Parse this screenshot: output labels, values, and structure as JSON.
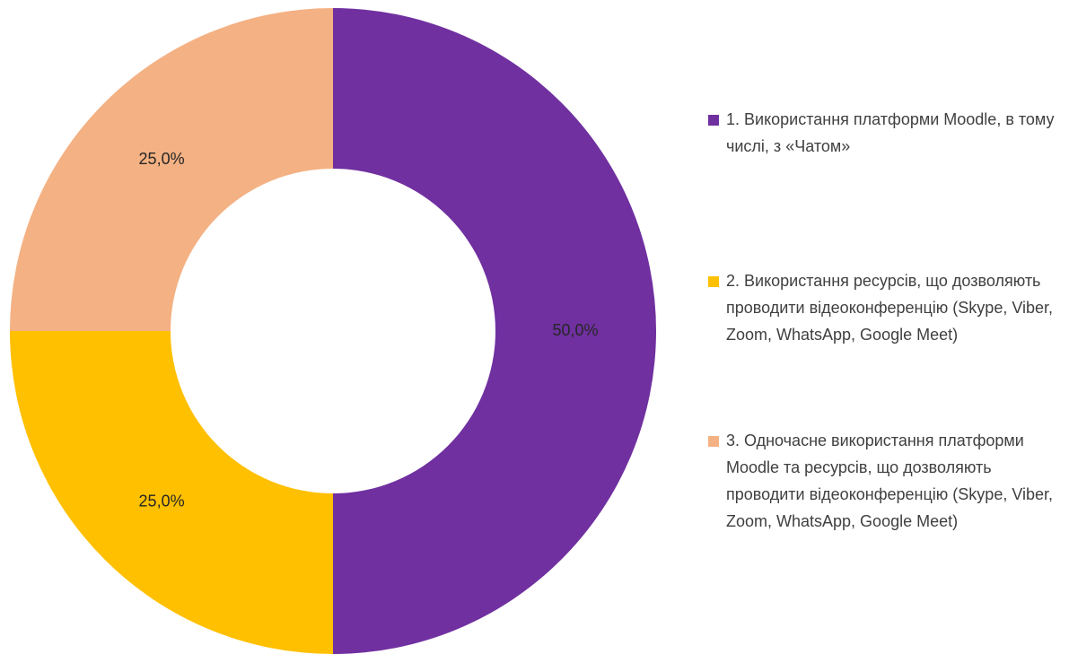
{
  "chart_data": {
    "type": "donut",
    "categories": [
      "1. Використання платформи Moodle, в тому числі, з «Чатом»",
      "2. Використання ресурсів, що дозволяють проводити відеоконференцію  (Skype, Viber, Zoom, WhatsApp, Google Meet)",
      "3. Одночасне використання платформи Moodle та ресурсів, що дозволяють проводити відеоконференцію  (Skype, Viber, Zoom, WhatsApp, Google Meet)"
    ],
    "values": [
      50,
      25,
      25
    ],
    "value_labels": [
      "50,0%",
      "25,0%",
      "25,0%"
    ],
    "colors": [
      "#7030a0",
      "#ffc000",
      "#f4b183"
    ],
    "legend": "right"
  }
}
